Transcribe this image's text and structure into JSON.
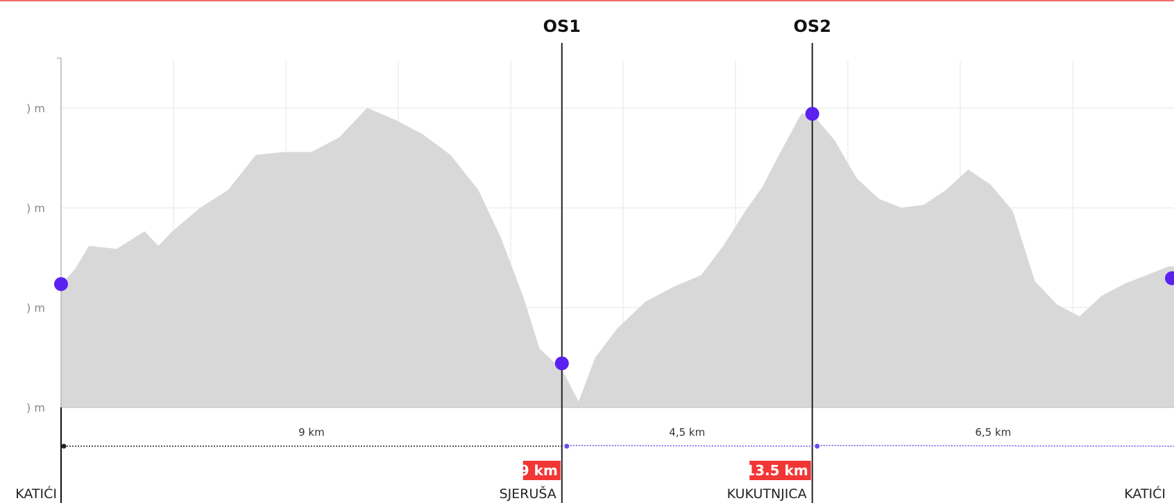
{
  "chart_data": {
    "type": "area",
    "title": "",
    "xlabel": "",
    "ylabel": "",
    "y_tick_labels": [
      ") m",
      ") m",
      ") m",
      ") m"
    ],
    "elevation_profile_x_km": [
      0,
      0.25,
      0.5,
      1.0,
      1.5,
      1.75,
      2.0,
      2.5,
      3.0,
      3.5,
      4.0,
      4.5,
      5.0,
      5.5,
      6.0,
      6.5,
      7.0,
      7.5,
      7.9,
      8.3,
      8.6,
      9.0,
      9.3,
      9.6,
      10.0,
      10.5,
      11.0,
      11.5,
      11.9,
      12.3,
      12.6,
      12.9,
      13.3,
      13.5,
      13.9,
      14.3,
      14.7,
      15.1,
      15.5,
      15.9,
      16.3,
      16.7,
      17.1,
      17.5,
      17.9,
      18.3,
      18.7,
      19.1,
      19.5,
      19.9
    ],
    "elevation_profile_y": [
      42,
      47,
      55,
      54,
      60,
      55,
      60,
      68,
      74,
      86,
      87,
      87,
      92,
      102,
      98,
      93,
      86,
      74,
      58,
      38,
      20,
      13,
      2,
      17,
      27,
      36,
      41,
      45,
      55,
      67,
      75,
      86,
      100,
      100,
      91,
      78,
      71,
      68,
      69,
      74,
      81,
      76,
      67,
      43,
      35,
      31,
      38,
      42,
      45,
      48
    ],
    "markers": [
      {
        "x_km": 0,
        "y": 42
      },
      {
        "x_km": 9.0,
        "y": 15
      },
      {
        "x_km": 13.5,
        "y": 100
      },
      {
        "x_km": 20.0,
        "y": 44
      }
    ],
    "checkpoints": [
      {
        "label": "OS1",
        "x_km": 9.0
      },
      {
        "label": "OS2",
        "x_km": 13.5
      }
    ],
    "segments": [
      {
        "label": "9 km",
        "from_km": 0,
        "to_km": 9.0
      },
      {
        "label": "4,5 km",
        "from_km": 9.0,
        "to_km": 13.5
      },
      {
        "label": "6,5 km",
        "from_km": 13.5,
        "to_km": 20.0
      }
    ],
    "cumulative_badges": [
      {
        "label": "9 km",
        "x_km": 9.0
      },
      {
        "label": "13.5 km",
        "x_km": 13.5
      }
    ],
    "locations": [
      {
        "name": "KATIĆI",
        "x_km": 0
      },
      {
        "name": "SJERUŠA",
        "x_km": 9.0
      },
      {
        "name": "KUKUTNJICA",
        "x_km": 13.5
      },
      {
        "name": "KATIĆI",
        "x_km": 20.0
      }
    ],
    "xlim": [
      0,
      20.0
    ],
    "ylim": [
      0,
      118
    ],
    "grid": true,
    "colors": {
      "area_fill": "#d8d8d8",
      "marker": "#5b21f0",
      "checkpoint_line": "#222222",
      "badge": "#f23535",
      "segment_line_first": "#222222",
      "segment_line_next": "#6a4cf0",
      "gridline": "#e6e6e6"
    }
  }
}
